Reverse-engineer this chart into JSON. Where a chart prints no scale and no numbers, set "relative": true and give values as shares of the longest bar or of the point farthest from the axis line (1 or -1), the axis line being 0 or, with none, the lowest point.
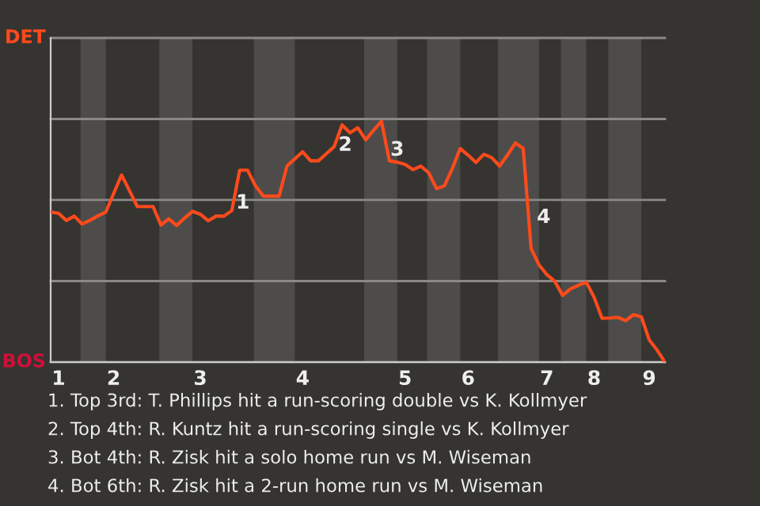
{
  "chart_data": {
    "type": "line",
    "relative": true,
    "categories": [
      null,
      "1",
      null,
      null,
      null,
      null,
      null,
      null,
      "2",
      null,
      null,
      null,
      null,
      null,
      null,
      null,
      null,
      null,
      null,
      "3",
      null,
      null,
      null,
      null,
      null,
      null,
      null,
      null,
      null,
      null,
      null,
      null,
      "4",
      null,
      null,
      null,
      null,
      null,
      null,
      null,
      null,
      null,
      null,
      null,
      null,
      "5",
      null,
      null,
      null,
      null,
      null,
      null,
      null,
      "6",
      null,
      null,
      null,
      null,
      null,
      null,
      null,
      null,
      null,
      "7",
      null,
      null,
      null,
      null,
      null,
      "8",
      null,
      null,
      null,
      null,
      null,
      null,
      "9",
      null,
      null
    ],
    "series": [
      {
        "color": "#ff4a1c",
        "values": [
          0.623,
          0.618,
          0.588,
          0.606,
          0.573,
          0.589,
          0.607,
          0.623,
          0.7,
          0.777,
          0.712,
          0.646,
          0.646,
          0.646,
          0.569,
          0.595,
          0.567,
          0.598,
          0.626,
          0.614,
          0.587,
          0.606,
          0.606,
          0.629,
          0.797,
          0.797,
          0.732,
          0.689,
          0.689,
          0.689,
          0.814,
          0.844,
          0.873,
          0.836,
          0.836,
          0.865,
          0.895,
          0.985,
          0.952,
          0.973,
          0.923,
          0.962,
          1,
          0.836,
          0.83,
          0.821,
          0.799,
          0.814,
          0.786,
          0.72,
          0.732,
          0.804,
          0.887,
          0.859,
          0.829,
          0.863,
          0.849,
          0.814,
          0.86,
          0.91,
          0.887,
          0.471,
          0.404,
          0.363,
          0.336,
          0.277,
          0.304,
          0.319,
          0.332,
          0.269,
          0.182,
          0.183,
          0.186,
          0.172,
          0.197,
          0.188,
          0.092,
          0.05,
          0
        ]
      }
    ],
    "marker": "none",
    "line_style": "solid",
    "ref_lines": [
      {
        "axis": "y",
        "value": 0,
        "label": "BOS"
      },
      {
        "axis": "y",
        "value": 0.3365,
        "label": null
      },
      {
        "axis": "y",
        "value": 0.673,
        "label": null
      },
      {
        "axis": "y",
        "value": 1.0094,
        "label": null
      },
      {
        "axis": "y",
        "value": 1.3459,
        "label": "DET"
      }
    ],
    "annotations": [
      "1",
      "2",
      "3",
      "4",
      "1. Top 3rd: T. Phillips hit a run-scoring double vs K. Kollmyer",
      "2. Top 4th: R. Kuntz hit a run-scoring single vs K. Kollmyer",
      "3. Bot 4th: R. Zisk hit a solo home run vs M. Wiseman",
      "4. Bot 6th: R. Zisk hit a 2-run home run vs M. Wiseman"
    ]
  }
}
